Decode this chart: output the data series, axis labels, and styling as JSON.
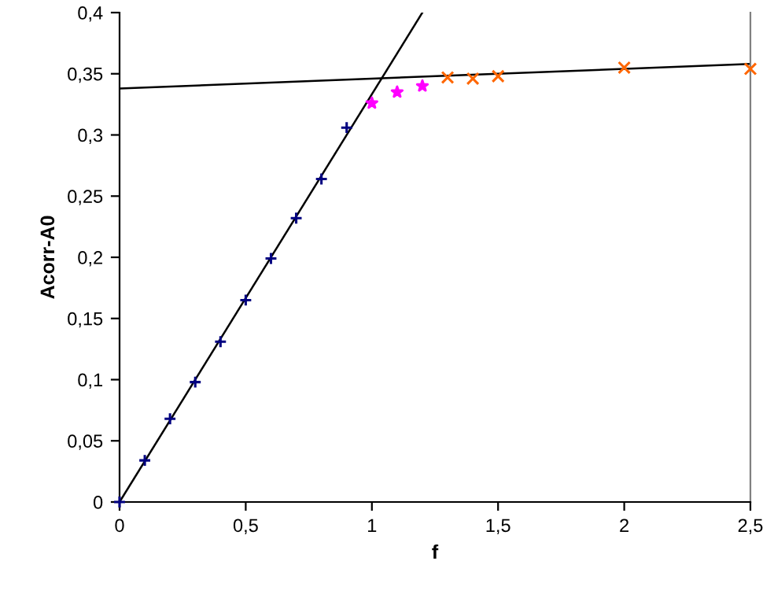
{
  "chart_data": {
    "type": "scatter",
    "xlabel": "f",
    "ylabel": "Acorr-A0",
    "xlim": [
      0,
      2.5
    ],
    "ylim": [
      0,
      0.4
    ],
    "xticks": [
      0,
      {
        "value": 0.5,
        "label": "0,5"
      },
      1,
      {
        "value": 1.5,
        "label": "1,5"
      },
      2,
      {
        "value": 2.5,
        "label": "2,5"
      }
    ],
    "yticks": [
      0,
      {
        "value": 0.05,
        "label": "0,05"
      },
      {
        "value": 0.1,
        "label": "0,1"
      },
      {
        "value": 0.15,
        "label": "0,15"
      },
      {
        "value": 0.2,
        "label": "0,2"
      },
      {
        "value": 0.25,
        "label": "0,25"
      },
      {
        "value": 0.3,
        "label": "0,3"
      },
      {
        "value": 0.35,
        "label": "0,35"
      },
      {
        "value": 0.4,
        "label": "0,4"
      }
    ],
    "grid": false,
    "series": [
      {
        "color": "#000080",
        "marker": "cross",
        "x": [
          0,
          0.1,
          0.2,
          0.3,
          0.4,
          0.5,
          0.6,
          0.7,
          0.8,
          0.9
        ],
        "values": [
          0,
          0.034,
          0.068,
          0.098,
          0.131,
          0.165,
          0.199,
          0.232,
          0.264,
          0.306
        ]
      },
      {
        "color": "#ff00ff",
        "marker": "star",
        "x": [
          1.0,
          1.1,
          1.2
        ],
        "values": [
          0.326,
          0.335,
          0.34
        ]
      },
      {
        "color": "#ff6600",
        "marker": "x",
        "x": [
          1.3,
          1.4,
          1.5,
          2.0,
          2.5
        ],
        "values": [
          0.347,
          0.346,
          0.348,
          0.355,
          0.354
        ]
      },
      {
        "type": "line",
        "color": "#000000",
        "x": [
          0,
          1.2
        ],
        "values": [
          0,
          0.4
        ]
      },
      {
        "type": "line",
        "color": "#000000",
        "x": [
          0,
          2.5
        ],
        "values": [
          0.338,
          0.358
        ]
      }
    ]
  }
}
